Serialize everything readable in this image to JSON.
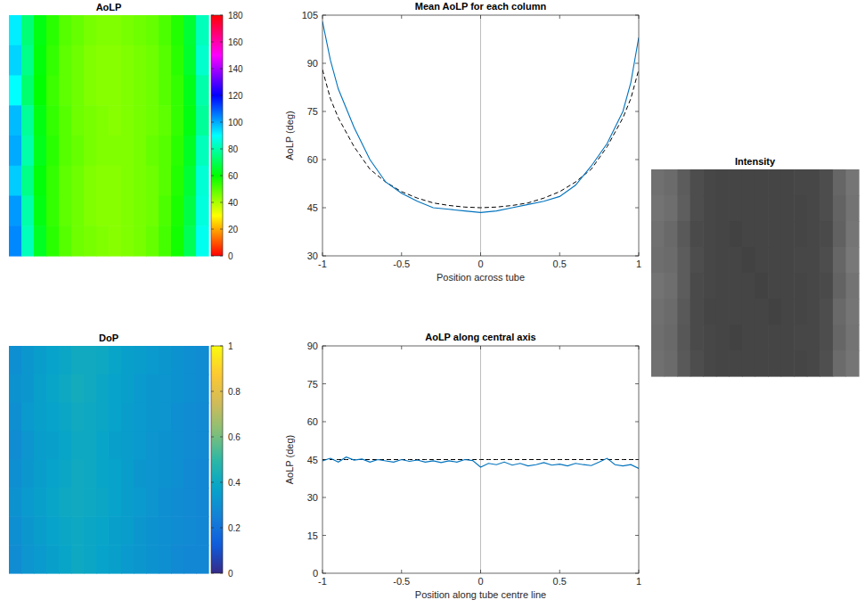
{
  "chart_data": [
    {
      "type": "heatmap",
      "title": "AoLP",
      "color": "hsv",
      "cells": [
        [
          92,
          74,
          62,
          55,
          50,
          48,
          46,
          45,
          45,
          46,
          47,
          48,
          51,
          56,
          66,
          82
        ],
        [
          95,
          76,
          61,
          54,
          49,
          47,
          45,
          44,
          44,
          45,
          46,
          47,
          50,
          55,
          65,
          84
        ],
        [
          90,
          73,
          60,
          53,
          49,
          47,
          45,
          44,
          44,
          45,
          46,
          47,
          50,
          54,
          63,
          80
        ],
        [
          98,
          78,
          62,
          54,
          50,
          47,
          46,
          45,
          44,
          45,
          46,
          47,
          49,
          54,
          62,
          78
        ],
        [
          100,
          80,
          63,
          55,
          50,
          48,
          46,
          45,
          45,
          45,
          46,
          48,
          50,
          55,
          64,
          82
        ],
        [
          96,
          76,
          61,
          54,
          49,
          47,
          45,
          44,
          44,
          45,
          46,
          47,
          50,
          56,
          66,
          85
        ],
        [
          102,
          80,
          62,
          54,
          49,
          47,
          45,
          44,
          44,
          45,
          46,
          47,
          51,
          57,
          68,
          86
        ],
        [
          104,
          82,
          64,
          55,
          50,
          47,
          46,
          45,
          44,
          45,
          46,
          48,
          52,
          58,
          70,
          88
        ]
      ],
      "colorbar": {
        "range": [
          0,
          180
        ],
        "ticks": [
          0,
          20,
          40,
          60,
          80,
          100,
          120,
          140,
          160,
          180
        ]
      }
    },
    {
      "type": "heatmap",
      "title": "DoP",
      "color": "parula",
      "cells": [
        [
          0.3,
          0.33,
          0.35,
          0.37,
          0.39,
          0.41,
          0.41,
          0.4,
          0.38,
          0.36,
          0.35,
          0.34,
          0.33,
          0.31,
          0.3,
          0.29
        ],
        [
          0.31,
          0.33,
          0.36,
          0.38,
          0.4,
          0.42,
          0.41,
          0.39,
          0.37,
          0.36,
          0.34,
          0.33,
          0.32,
          0.31,
          0.3,
          0.29
        ],
        [
          0.3,
          0.34,
          0.36,
          0.37,
          0.39,
          0.41,
          0.4,
          0.39,
          0.37,
          0.35,
          0.34,
          0.33,
          0.32,
          0.3,
          0.29,
          0.28
        ],
        [
          0.29,
          0.32,
          0.35,
          0.36,
          0.38,
          0.4,
          0.4,
          0.38,
          0.36,
          0.35,
          0.34,
          0.32,
          0.31,
          0.3,
          0.29,
          0.28
        ],
        [
          0.3,
          0.33,
          0.35,
          0.37,
          0.39,
          0.41,
          0.4,
          0.38,
          0.37,
          0.35,
          0.33,
          0.32,
          0.31,
          0.3,
          0.28,
          0.27
        ],
        [
          0.31,
          0.34,
          0.36,
          0.38,
          0.4,
          0.41,
          0.4,
          0.39,
          0.37,
          0.35,
          0.34,
          0.32,
          0.3,
          0.29,
          0.28,
          0.27
        ],
        [
          0.3,
          0.33,
          0.35,
          0.37,
          0.39,
          0.4,
          0.39,
          0.38,
          0.36,
          0.35,
          0.33,
          0.31,
          0.3,
          0.29,
          0.28,
          0.27
        ],
        [
          0.29,
          0.32,
          0.34,
          0.36,
          0.38,
          0.4,
          0.39,
          0.37,
          0.36,
          0.34,
          0.33,
          0.31,
          0.3,
          0.28,
          0.27,
          0.27
        ]
      ],
      "colorbar": {
        "range": [
          0,
          1
        ],
        "ticks": [
          0,
          0.2,
          0.4,
          0.6,
          0.8,
          1
        ]
      }
    },
    {
      "type": "line",
      "title": "Mean AoLP for each column",
      "x_label": "Position across tube",
      "y_label": "AoLP (deg)",
      "x": [
        -1,
        -0.95,
        -0.9,
        -0.8,
        -0.7,
        -0.6,
        -0.5,
        -0.4,
        -0.3,
        -0.2,
        -0.1,
        0,
        0.1,
        0.2,
        0.3,
        0.4,
        0.5,
        0.6,
        0.7,
        0.8,
        0.9,
        0.95,
        1
      ],
      "series": [
        {
          "color": "#0072bd",
          "line_style": "solid",
          "values": [
            103,
            91,
            82,
            70,
            60,
            53,
            49.5,
            47,
            45,
            44.5,
            44,
            43.5,
            44,
            45,
            46,
            47,
            48.5,
            52,
            58,
            65,
            75,
            84,
            98
          ]
        },
        {
          "color": "#000000",
          "line_style": "dashed",
          "values": [
            88,
            79,
            73,
            64,
            57,
            53,
            50,
            48,
            46.5,
            45.7,
            45.2,
            45,
            45.2,
            45.7,
            46.5,
            48,
            50,
            53,
            57,
            64,
            73,
            79,
            88
          ]
        }
      ],
      "xlim": [
        -1,
        1
      ],
      "xticks": [
        -1,
        -0.5,
        0,
        0.5,
        1
      ],
      "ylim": [
        30,
        105
      ],
      "yticks": [
        30,
        45,
        60,
        75,
        90,
        105
      ],
      "vline": 0
    },
    {
      "type": "line",
      "title": "AoLP along central axis",
      "x_label": "Position along tube centre line",
      "y_label": "AoLP (deg)",
      "x": [
        -1,
        -0.95,
        -0.9,
        -0.85,
        -0.8,
        -0.75,
        -0.7,
        -0.65,
        -0.6,
        -0.55,
        -0.5,
        -0.45,
        -0.4,
        -0.35,
        -0.3,
        -0.25,
        -0.2,
        -0.15,
        -0.1,
        -0.05,
        0,
        0.05,
        0.1,
        0.15,
        0.2,
        0.25,
        0.3,
        0.35,
        0.4,
        0.45,
        0.5,
        0.55,
        0.6,
        0.65,
        0.7,
        0.75,
        0.8,
        0.85,
        0.9,
        0.95,
        1
      ],
      "series": [
        {
          "color": "#0072bd",
          "line_style": "solid",
          "values": [
            44.5,
            45.5,
            44,
            46,
            44.8,
            45.2,
            44,
            45,
            44.5,
            44,
            45,
            44.3,
            44.8,
            44,
            44.5,
            43.8,
            44.5,
            44,
            45,
            44.6,
            42,
            43.5,
            43,
            44,
            42.8,
            43.5,
            42.5,
            43,
            43.8,
            42.8,
            43.2,
            42.5,
            43.5,
            43,
            42.6,
            44,
            45.5,
            43,
            42.5,
            43,
            41.5
          ]
        },
        {
          "color": "#000000",
          "line_style": "dashed",
          "values": [
            45,
            45,
            45,
            45,
            45,
            45,
            45,
            45,
            45,
            45,
            45,
            45,
            45,
            45,
            45,
            45,
            45,
            45,
            45,
            45,
            45,
            45,
            45,
            45,
            45,
            45,
            45,
            45,
            45,
            45,
            45,
            45,
            45,
            45,
            45,
            45,
            45,
            45,
            45,
            45,
            45
          ]
        }
      ],
      "xlim": [
        -1,
        1
      ],
      "xticks": [
        -1,
        -0.5,
        0,
        0.5,
        1
      ],
      "ylim": [
        0,
        90
      ],
      "yticks": [
        0,
        15,
        30,
        45,
        60,
        75,
        90
      ],
      "vline": 0
    },
    {
      "type": "heatmap",
      "title": "Intensity",
      "color": "gray",
      "cells": [
        [
          0.44,
          0.42,
          0.36,
          0.3,
          0.28,
          0.27,
          0.27,
          0.27,
          0.27,
          0.27,
          0.27,
          0.28,
          0.28,
          0.3,
          0.4,
          0.46
        ],
        [
          0.45,
          0.43,
          0.37,
          0.3,
          0.28,
          0.27,
          0.27,
          0.27,
          0.27,
          0.27,
          0.27,
          0.27,
          0.28,
          0.3,
          0.39,
          0.45
        ],
        [
          0.44,
          0.41,
          0.35,
          0.29,
          0.28,
          0.27,
          0.26,
          0.27,
          0.27,
          0.27,
          0.27,
          0.27,
          0.28,
          0.29,
          0.38,
          0.46
        ],
        [
          0.43,
          0.42,
          0.36,
          0.3,
          0.28,
          0.27,
          0.27,
          0.26,
          0.27,
          0.27,
          0.27,
          0.28,
          0.28,
          0.3,
          0.4,
          0.47
        ],
        [
          0.45,
          0.43,
          0.36,
          0.29,
          0.28,
          0.27,
          0.27,
          0.27,
          0.26,
          0.27,
          0.27,
          0.27,
          0.28,
          0.29,
          0.39,
          0.45
        ],
        [
          0.44,
          0.42,
          0.35,
          0.29,
          0.27,
          0.27,
          0.27,
          0.27,
          0.27,
          0.26,
          0.27,
          0.27,
          0.28,
          0.3,
          0.41,
          0.46
        ],
        [
          0.43,
          0.41,
          0.34,
          0.29,
          0.28,
          0.27,
          0.26,
          0.27,
          0.27,
          0.27,
          0.27,
          0.28,
          0.28,
          0.3,
          0.4,
          0.45
        ],
        [
          0.44,
          0.42,
          0.35,
          0.3,
          0.28,
          0.27,
          0.27,
          0.27,
          0.27,
          0.27,
          0.27,
          0.27,
          0.28,
          0.31,
          0.42,
          0.46
        ]
      ]
    }
  ]
}
